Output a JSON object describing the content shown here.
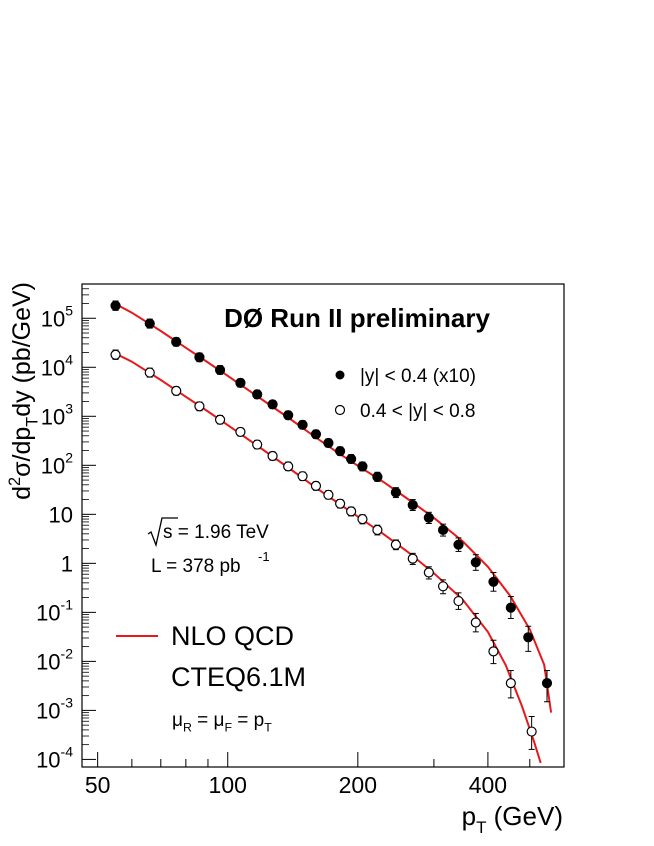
{
  "chart_data": {
    "type": "scatter",
    "title": "DØ Run II preliminary",
    "xlabel": "p",
    "xlabel_sub": "T",
    "xlabel_unit": " (GeV)",
    "ylabel_parts": [
      {
        "t": "d"
      },
      {
        "t": "2",
        "s": "sup"
      },
      {
        "t": "σ/dp"
      },
      {
        "t": "T",
        "s": "sub"
      },
      {
        "t": "dy (pb/GeV)"
      }
    ],
    "x_scale": "log",
    "y_scale": "log",
    "xlim": [
      46,
      600
    ],
    "ylim": [
      7e-05,
      500000
    ],
    "x_ticks": [
      {
        "v": 50,
        "label": "50"
      },
      {
        "v": 100,
        "label": "100"
      },
      {
        "v": 200,
        "label": "200"
      },
      {
        "v": 400,
        "label": "400"
      }
    ],
    "y_ticks": [
      {
        "v": 0.0001,
        "base": "10",
        "exp": "-4"
      },
      {
        "v": 0.001,
        "base": "10",
        "exp": "-3"
      },
      {
        "v": 0.01,
        "base": "10",
        "exp": "-2"
      },
      {
        "v": 0.1,
        "base": "10",
        "exp": "-1"
      },
      {
        "v": 1,
        "base": "1",
        "exp": ""
      },
      {
        "v": 10,
        "base": "10",
        "exp": ""
      },
      {
        "v": 100,
        "base": "10",
        "exp": "2"
      },
      {
        "v": 1000,
        "base": "10",
        "exp": "3"
      },
      {
        "v": 10000,
        "base": "10",
        "exp": "4"
      },
      {
        "v": 100000,
        "base": "10",
        "exp": "5"
      }
    ],
    "annotations": {
      "sqrt_s": "s = 1.96 TeV",
      "lumi": "L = 378 pb",
      "lumi_exp": "-1",
      "cteq": "CTEQ6.1M",
      "scale_parts": [
        {
          "t": "μ"
        },
        {
          "t": "R",
          "s": "sub"
        },
        {
          "t": " = μ"
        },
        {
          "t": "F",
          "s": "sub"
        },
        {
          "t": " = p"
        },
        {
          "t": "T",
          "s": "sub"
        }
      ]
    },
    "legend": [
      {
        "label": "|y| < 0.4 (x10)",
        "marker": "filled-circle"
      },
      {
        "label": "0.4 < |y| < 0.8",
        "marker": "open-circle"
      },
      {
        "label": "NLO QCD",
        "marker": "red-line"
      }
    ],
    "series": [
      {
        "name": "|y| < 0.4 (x10)",
        "marker": "filled",
        "points": [
          {
            "x": 55,
            "y": 180000,
            "lo": 145000,
            "hi": 225000
          },
          {
            "x": 66,
            "y": 78000,
            "lo": 63000,
            "hi": 96000
          },
          {
            "x": 76,
            "y": 33000,
            "lo": 27000,
            "hi": 40000
          },
          {
            "x": 86,
            "y": 16000,
            "lo": 13000,
            "hi": 19500
          },
          {
            "x": 96,
            "y": 8800,
            "lo": 7200,
            "hi": 10800
          },
          {
            "x": 107,
            "y": 4800,
            "lo": 3950,
            "hi": 5800
          },
          {
            "x": 117,
            "y": 2800,
            "lo": 2300,
            "hi": 3400
          },
          {
            "x": 127,
            "y": 1750,
            "lo": 1450,
            "hi": 2100
          },
          {
            "x": 138,
            "y": 1050,
            "lo": 870,
            "hi": 1270
          },
          {
            "x": 149,
            "y": 670,
            "lo": 555,
            "hi": 810
          },
          {
            "x": 160,
            "y": 430,
            "lo": 355,
            "hi": 520
          },
          {
            "x": 171,
            "y": 285,
            "lo": 235,
            "hi": 345
          },
          {
            "x": 182,
            "y": 195,
            "lo": 160,
            "hi": 237
          },
          {
            "x": 193,
            "y": 135,
            "lo": 110,
            "hi": 165
          },
          {
            "x": 205,
            "y": 95,
            "lo": 77,
            "hi": 116
          },
          {
            "x": 222,
            "y": 58,
            "lo": 47,
            "hi": 72
          },
          {
            "x": 245,
            "y": 28,
            "lo": 22,
            "hi": 35
          },
          {
            "x": 268,
            "y": 15.5,
            "lo": 12,
            "hi": 20
          },
          {
            "x": 292,
            "y": 8.5,
            "lo": 6.5,
            "hi": 11
          },
          {
            "x": 315,
            "y": 4.8,
            "lo": 3.6,
            "hi": 6.3
          },
          {
            "x": 342,
            "y": 2.4,
            "lo": 1.75,
            "hi": 3.3
          },
          {
            "x": 375,
            "y": 1.05,
            "lo": 0.72,
            "hi": 1.5
          },
          {
            "x": 412,
            "y": 0.42,
            "lo": 0.27,
            "hi": 0.65
          },
          {
            "x": 452,
            "y": 0.125,
            "lo": 0.075,
            "hi": 0.21
          },
          {
            "x": 496,
            "y": 0.031,
            "lo": 0.016,
            "hi": 0.052
          },
          {
            "x": 548,
            "y": 0.0036,
            "lo": 0.0015,
            "hi": 0.0065
          }
        ]
      },
      {
        "name": "0.4 < |y| < 0.8",
        "marker": "open",
        "points": [
          {
            "x": 55,
            "y": 18000,
            "lo": 14500,
            "hi": 22500
          },
          {
            "x": 66,
            "y": 7800,
            "lo": 6300,
            "hi": 9600
          },
          {
            "x": 76,
            "y": 3300,
            "lo": 2700,
            "hi": 4000
          },
          {
            "x": 86,
            "y": 1600,
            "lo": 1300,
            "hi": 1950
          },
          {
            "x": 96,
            "y": 850,
            "lo": 700,
            "hi": 1040
          },
          {
            "x": 107,
            "y": 480,
            "lo": 395,
            "hi": 580
          },
          {
            "x": 117,
            "y": 265,
            "lo": 218,
            "hi": 322
          },
          {
            "x": 127,
            "y": 155,
            "lo": 127,
            "hi": 188
          },
          {
            "x": 138,
            "y": 95,
            "lo": 78,
            "hi": 116
          },
          {
            "x": 149,
            "y": 60,
            "lo": 49,
            "hi": 73
          },
          {
            "x": 160,
            "y": 38,
            "lo": 31,
            "hi": 46
          },
          {
            "x": 171,
            "y": 25,
            "lo": 20.5,
            "hi": 30.5
          },
          {
            "x": 182,
            "y": 16.5,
            "lo": 13.5,
            "hi": 20
          },
          {
            "x": 193,
            "y": 11.5,
            "lo": 9.3,
            "hi": 14
          },
          {
            "x": 205,
            "y": 8,
            "lo": 6.4,
            "hi": 9.8
          },
          {
            "x": 222,
            "y": 4.8,
            "lo": 3.8,
            "hi": 6
          },
          {
            "x": 245,
            "y": 2.4,
            "lo": 1.9,
            "hi": 3
          },
          {
            "x": 268,
            "y": 1.25,
            "lo": 0.95,
            "hi": 1.6
          },
          {
            "x": 292,
            "y": 0.65,
            "lo": 0.48,
            "hi": 0.85
          },
          {
            "x": 315,
            "y": 0.34,
            "lo": 0.24,
            "hi": 0.46
          },
          {
            "x": 342,
            "y": 0.17,
            "lo": 0.115,
            "hi": 0.25
          },
          {
            "x": 375,
            "y": 0.062,
            "lo": 0.04,
            "hi": 0.095
          },
          {
            "x": 412,
            "y": 0.016,
            "lo": 0.009,
            "hi": 0.027
          },
          {
            "x": 452,
            "y": 0.0036,
            "lo": 0.0018,
            "hi": 0.0065
          },
          {
            "x": 505,
            "y": 0.00037,
            "lo": 0.00016,
            "hi": 0.00075
          }
        ]
      }
    ],
    "curves": [
      {
        "name": "NLO QCD |y| < 0.4 (x10)",
        "color": "#e8191b",
        "points": [
          [
            55,
            195000
          ],
          [
            60,
            130000
          ],
          [
            70,
            55000
          ],
          [
            80,
            25000
          ],
          [
            90,
            12500
          ],
          [
            100,
            6700
          ],
          [
            120,
            2200
          ],
          [
            140,
            860
          ],
          [
            160,
            370
          ],
          [
            180,
            180
          ],
          [
            200,
            98
          ],
          [
            230,
            45
          ],
          [
            260,
            21
          ],
          [
            300,
            8.5
          ],
          [
            350,
            2.8
          ],
          [
            400,
            0.85
          ],
          [
            450,
            0.22
          ],
          [
            500,
            0.045
          ],
          [
            540,
            0.0085
          ],
          [
            560,
            0.0009
          ]
        ]
      },
      {
        "name": "NLO QCD 0.4 < |y| < 0.8",
        "color": "#e8191b",
        "points": [
          [
            55,
            19000
          ],
          [
            60,
            13000
          ],
          [
            70,
            5500
          ],
          [
            80,
            2500
          ],
          [
            90,
            1250
          ],
          [
            100,
            660
          ],
          [
            120,
            215
          ],
          [
            140,
            82
          ],
          [
            160,
            35
          ],
          [
            180,
            17
          ],
          [
            200,
            9
          ],
          [
            230,
            3.9
          ],
          [
            260,
            1.75
          ],
          [
            300,
            0.63
          ],
          [
            350,
            0.18
          ],
          [
            400,
            0.04
          ],
          [
            440,
            0.0083
          ],
          [
            480,
            0.0012
          ],
          [
            510,
            0.00025
          ],
          [
            530,
            8.5e-05
          ]
        ]
      }
    ]
  }
}
